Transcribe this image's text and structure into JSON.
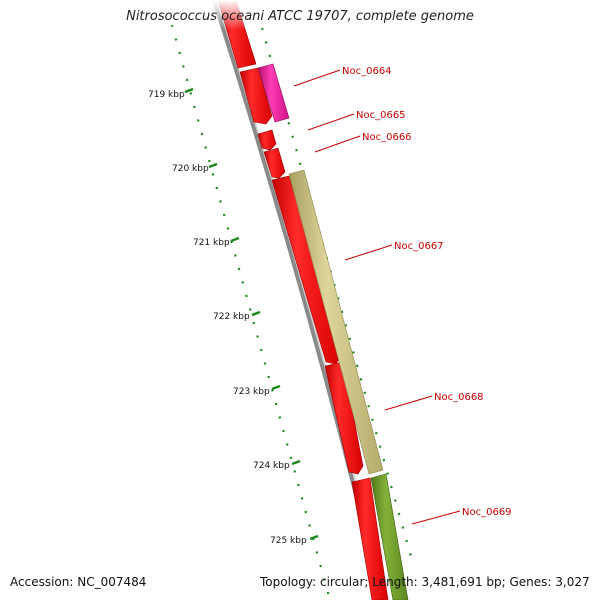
{
  "title": "Nitrosococcus oceani ATCC 19707, complete genome",
  "footer": {
    "accession": "Accession: NC_007484",
    "summary": "Topology: circular; Length: 3,481,691 bp; Genes: 3,027"
  },
  "scale_labels": [
    "719 kbp",
    "720 kbp",
    "721 kbp",
    "722 kbp",
    "723 kbp",
    "724 kbp",
    "725 kbp"
  ],
  "genes": [
    {
      "name": "Noc_0664",
      "color": "#e8189a"
    },
    {
      "name": "Noc_0665",
      "color": "#ff0000"
    },
    {
      "name": "Noc_0666",
      "color": "#ff0000"
    },
    {
      "name": "Noc_0667",
      "color": "#c8c080"
    },
    {
      "name": "Noc_0668",
      "color": "#ff0000"
    },
    {
      "name": "Noc_0669",
      "color": "#6a9a28"
    }
  ],
  "colors": {
    "backbone": "#8a8a8a",
    "cds_red": "#ff0000",
    "tick_green": "#1a8a1a",
    "label_red": "#cc0000"
  }
}
